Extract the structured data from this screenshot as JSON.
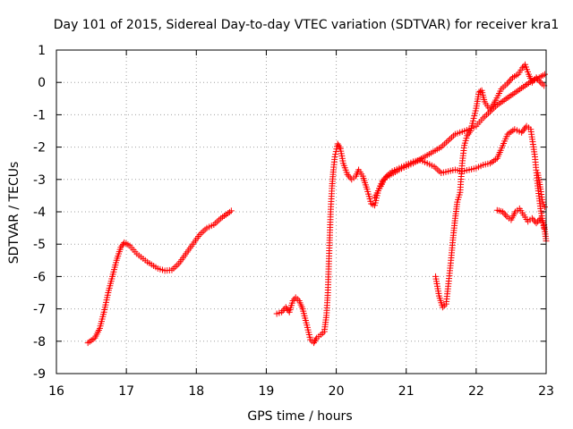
{
  "chart_data": {
    "type": "scatter",
    "title": "Day 101 of 2015, Sidereal Day-to-day VTEC variation (SDTVAR) for receiver kra1",
    "xlabel": "GPS time / hours",
    "ylabel": "SDTVAR / TECUs",
    "xlim": [
      16,
      23
    ],
    "ylim": [
      -9,
      1
    ],
    "xticks": [
      "16",
      "17",
      "18",
      "19",
      "20",
      "21",
      "22",
      "23"
    ],
    "yticks": [
      "1",
      "0",
      "-1",
      "-2",
      "-3",
      "-4",
      "-5",
      "-6",
      "-7",
      "-8",
      "-9"
    ],
    "grid": true,
    "marker": "+",
    "color": "#ff0000",
    "series": [
      {
        "name": "segment-1",
        "points": [
          [
            16.45,
            -8.05
          ],
          [
            16.55,
            -7.9
          ],
          [
            16.62,
            -7.6
          ],
          [
            16.68,
            -7.1
          ],
          [
            16.74,
            -6.5
          ],
          [
            16.8,
            -6.0
          ],
          [
            16.86,
            -5.5
          ],
          [
            16.92,
            -5.1
          ],
          [
            16.97,
            -4.95
          ],
          [
            17.05,
            -5.05
          ],
          [
            17.15,
            -5.3
          ],
          [
            17.3,
            -5.55
          ],
          [
            17.45,
            -5.75
          ],
          [
            17.55,
            -5.82
          ],
          [
            17.65,
            -5.8
          ],
          [
            17.75,
            -5.6
          ],
          [
            17.85,
            -5.3
          ],
          [
            17.95,
            -5.0
          ],
          [
            18.05,
            -4.7
          ],
          [
            18.15,
            -4.5
          ],
          [
            18.25,
            -4.4
          ],
          [
            18.35,
            -4.2
          ],
          [
            18.45,
            -4.05
          ],
          [
            18.5,
            -3.97
          ]
        ]
      },
      {
        "name": "segment-2",
        "points": [
          [
            19.15,
            -7.15
          ],
          [
            19.22,
            -7.1
          ],
          [
            19.28,
            -6.95
          ],
          [
            19.33,
            -7.1
          ],
          [
            19.38,
            -6.75
          ],
          [
            19.42,
            -6.65
          ],
          [
            19.47,
            -6.75
          ],
          [
            19.52,
            -7.0
          ],
          [
            19.58,
            -7.5
          ],
          [
            19.63,
            -7.95
          ],
          [
            19.68,
            -8.05
          ],
          [
            19.72,
            -7.9
          ],
          [
            19.78,
            -7.8
          ],
          [
            19.83,
            -7.7
          ],
          [
            19.86,
            -7.2
          ],
          [
            19.88,
            -6.5
          ],
          [
            19.9,
            -5.2
          ],
          [
            19.92,
            -4.0
          ],
          [
            19.94,
            -3.2
          ],
          [
            19.96,
            -2.7
          ],
          [
            19.98,
            -2.3
          ],
          [
            20.02,
            -1.9
          ],
          [
            20.06,
            -2.05
          ],
          [
            20.1,
            -2.5
          ],
          [
            20.16,
            -2.85
          ],
          [
            20.22,
            -3.0
          ],
          [
            20.28,
            -2.9
          ],
          [
            20.32,
            -2.7
          ],
          [
            20.38,
            -2.9
          ],
          [
            20.44,
            -3.3
          ],
          [
            20.5,
            -3.75
          ],
          [
            20.55,
            -3.8
          ],
          [
            20.6,
            -3.35
          ],
          [
            20.66,
            -3.05
          ],
          [
            20.72,
            -2.9
          ],
          [
            20.8,
            -2.75
          ],
          [
            20.9,
            -2.65
          ],
          [
            21.0,
            -2.55
          ],
          [
            21.1,
            -2.45
          ],
          [
            21.2,
            -2.4
          ],
          [
            21.3,
            -2.5
          ],
          [
            21.4,
            -2.6
          ],
          [
            21.5,
            -2.8
          ],
          [
            21.6,
            -2.75
          ],
          [
            21.7,
            -2.7
          ],
          [
            21.8,
            -2.75
          ],
          [
            21.9,
            -2.7
          ],
          [
            22.0,
            -2.65
          ],
          [
            22.1,
            -2.55
          ],
          [
            22.2,
            -2.5
          ],
          [
            22.3,
            -2.35
          ],
          [
            22.35,
            -2.1
          ],
          [
            22.45,
            -1.6
          ],
          [
            22.55,
            -1.45
          ],
          [
            22.65,
            -1.55
          ],
          [
            22.72,
            -1.35
          ],
          [
            22.78,
            -1.45
          ],
          [
            22.84,
            -2.3
          ],
          [
            22.88,
            -3.2
          ],
          [
            22.92,
            -3.9
          ],
          [
            22.97,
            -4.5
          ]
        ]
      },
      {
        "name": "segment-3",
        "points": [
          [
            20.55,
            -3.55
          ],
          [
            20.7,
            -2.95
          ],
          [
            20.9,
            -2.7
          ],
          [
            21.1,
            -2.5
          ],
          [
            21.3,
            -2.25
          ],
          [
            21.5,
            -2.0
          ],
          [
            21.7,
            -1.6
          ],
          [
            21.9,
            -1.45
          ],
          [
            22.0,
            -1.35
          ],
          [
            22.1,
            -1.1
          ],
          [
            22.2,
            -0.9
          ],
          [
            22.3,
            -0.7
          ],
          [
            22.4,
            -0.55
          ],
          [
            22.5,
            -0.4
          ],
          [
            22.6,
            -0.25
          ],
          [
            22.7,
            -0.1
          ],
          [
            22.8,
            0.05
          ],
          [
            22.9,
            0.15
          ],
          [
            22.98,
            0.25
          ]
        ]
      },
      {
        "name": "segment-4",
        "points": [
          [
            21.42,
            -6.0
          ],
          [
            21.47,
            -6.6
          ],
          [
            21.52,
            -6.95
          ],
          [
            21.57,
            -6.85
          ],
          [
            21.6,
            -6.3
          ],
          [
            21.64,
            -5.5
          ],
          [
            21.67,
            -4.8
          ],
          [
            21.7,
            -4.2
          ],
          [
            21.73,
            -3.7
          ],
          [
            21.77,
            -3.4
          ],
          [
            21.8,
            -2.5
          ],
          [
            21.83,
            -1.95
          ],
          [
            21.87,
            -1.65
          ],
          [
            21.92,
            -1.5
          ],
          [
            22.0,
            -0.8
          ],
          [
            22.04,
            -0.3
          ],
          [
            22.08,
            -0.25
          ],
          [
            22.12,
            -0.6
          ],
          [
            22.2,
            -0.85
          ],
          [
            22.28,
            -0.55
          ],
          [
            22.36,
            -0.2
          ],
          [
            22.44,
            -0.05
          ],
          [
            22.52,
            0.15
          ],
          [
            22.6,
            0.25
          ],
          [
            22.66,
            0.45
          ],
          [
            22.7,
            0.55
          ],
          [
            22.75,
            0.25
          ],
          [
            22.8,
            0.0
          ],
          [
            22.86,
            0.15
          ],
          [
            22.92,
            0.0
          ],
          [
            22.97,
            -0.1
          ]
        ]
      },
      {
        "name": "segment-5",
        "points": [
          [
            22.3,
            -3.95
          ],
          [
            22.38,
            -4.0
          ],
          [
            22.44,
            -4.15
          ],
          [
            22.5,
            -4.25
          ],
          [
            22.56,
            -4.0
          ],
          [
            22.62,
            -3.9
          ],
          [
            22.68,
            -4.1
          ],
          [
            22.74,
            -4.3
          ],
          [
            22.8,
            -4.2
          ],
          [
            22.86,
            -4.35
          ],
          [
            22.92,
            -4.2
          ],
          [
            22.97,
            -4.4
          ],
          [
            23.0,
            -4.9
          ]
        ]
      },
      {
        "name": "segment-6",
        "points": [
          [
            22.88,
            -2.8
          ],
          [
            22.92,
            -3.3
          ],
          [
            22.95,
            -3.7
          ],
          [
            22.98,
            -3.85
          ]
        ]
      }
    ]
  }
}
